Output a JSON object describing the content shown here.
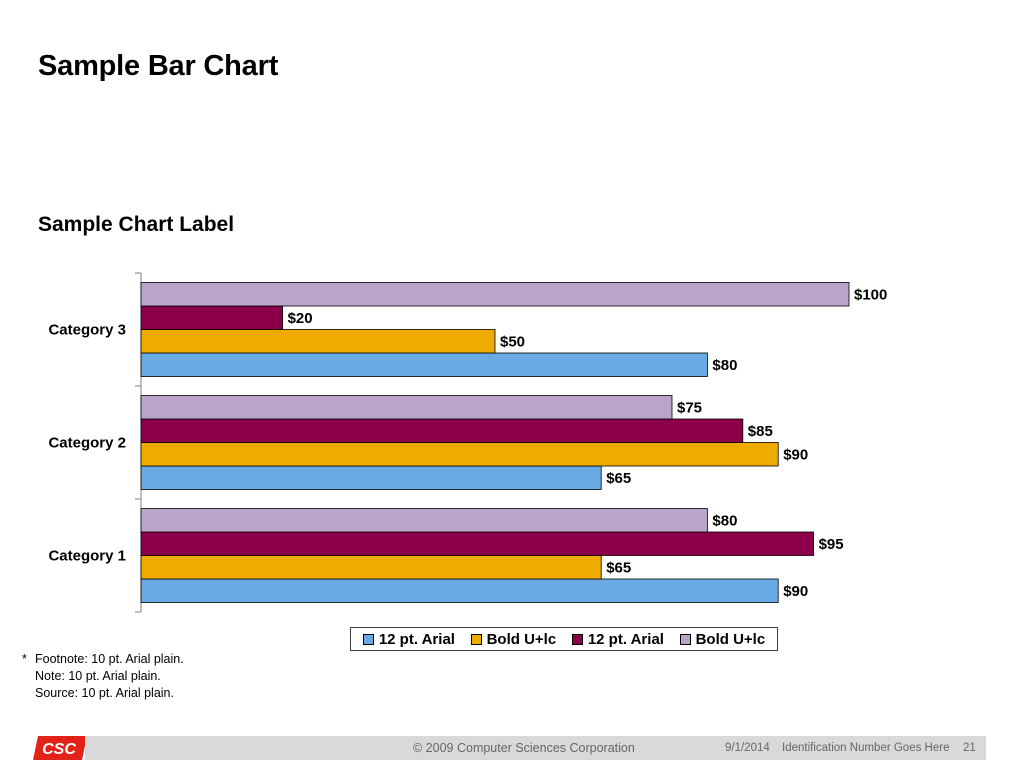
{
  "slide": {
    "title": "Sample Bar Chart",
    "chart_label": "Sample Chart Label"
  },
  "chart_data": {
    "type": "bar",
    "orientation": "horizontal",
    "categories": [
      "Category 1",
      "Category 2",
      "Category 3"
    ],
    "series": [
      {
        "name": "12 pt. Arial",
        "color": "#6aaae4",
        "values": [
          90,
          65,
          80
        ],
        "labels": [
          "$90",
          "$65",
          "$80"
        ]
      },
      {
        "name": "Bold U+lc",
        "color": "#f0ab00",
        "values": [
          65,
          90,
          50
        ],
        "labels": [
          "$65",
          "$90",
          "$50"
        ]
      },
      {
        "name": "12 pt. Arial",
        "color": "#8b0049",
        "values": [
          95,
          85,
          20
        ],
        "labels": [
          "$95",
          "$85",
          "$20"
        ]
      },
      {
        "name": "Bold U+lc",
        "color": "#bba4c9",
        "values": [
          80,
          75,
          100
        ],
        "labels": [
          "$80",
          "$75",
          "$100"
        ]
      }
    ],
    "xlim": [
      0,
      100
    ],
    "grid": false,
    "legend_position": "bottom"
  },
  "footnotes": {
    "marker": "*",
    "lines": [
      "Footnote: 10 pt. Arial plain.",
      "Note: 10 pt. Arial plain.",
      "Source: 10 pt. Arial plain."
    ]
  },
  "footer": {
    "logo_text": "CSC",
    "logo_color": "#e2231a",
    "copyright": "© 2009 Computer Sciences Corporation",
    "date": "9/1/2014",
    "identification": "Identification Number Goes Here",
    "page_number": "21"
  }
}
